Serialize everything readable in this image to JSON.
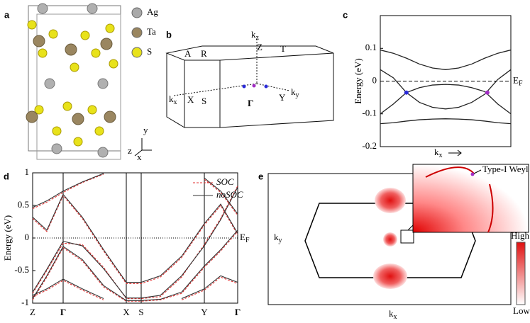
{
  "panels": {
    "a": {
      "label": "a",
      "legend": [
        {
          "name": "Ag",
          "color": "#a9a9a9"
        },
        {
          "name": "Ta",
          "color": "#9a8660"
        },
        {
          "name": "S",
          "color": "#e8e21a"
        }
      ],
      "axes": [
        "y",
        "z",
        "x"
      ]
    },
    "b": {
      "label": "b",
      "points": [
        "A",
        "R",
        "Z",
        "T",
        "Γ",
        "X",
        "S",
        "Y"
      ],
      "axes": [
        {
          "text": "k",
          "sub": "z"
        },
        {
          "text": "k",
          "sub": "x"
        },
        {
          "text": "k",
          "sub": "y"
        }
      ]
    },
    "e": {
      "label": "e",
      "xlabel": {
        "text": "k",
        "sub": "x"
      },
      "ylabel": {
        "text": "k",
        "sub": "y"
      },
      "inset_label": "Type-I Weyl",
      "colorbar": [
        "High",
        "Low"
      ]
    }
  },
  "chart_data": [
    {
      "type": "line",
      "label": "c",
      "ylabel": "Energy (eV)",
      "xlabel": {
        "text": "k",
        "sub": "x"
      },
      "fermi_label": {
        "text": "E",
        "sub": "F"
      },
      "ylim": [
        -0.2,
        0.2
      ],
      "yticks": [
        -0.2,
        -0.1,
        0,
        0.1
      ],
      "xlim": [
        0,
        1
      ],
      "x": [
        0,
        0.1,
        0.2,
        0.3,
        0.4,
        0.5,
        0.6,
        0.7,
        0.8,
        0.9,
        1
      ],
      "series": [
        {
          "color": "#222",
          "values": [
            0.095,
            0.085,
            0.07,
            0.052,
            0.04,
            0.035,
            0.04,
            0.052,
            0.07,
            0.085,
            0.095
          ]
        },
        {
          "color": "#222",
          "values": [
            0.035,
            0.01,
            -0.035,
            -0.065,
            -0.08,
            -0.085,
            -0.08,
            -0.065,
            -0.04,
            0.005,
            0.035
          ]
        },
        {
          "color": "#222",
          "values": [
            -0.1,
            -0.07,
            -0.035,
            -0.02,
            -0.012,
            -0.01,
            -0.012,
            -0.02,
            -0.032,
            -0.07,
            -0.1
          ]
        },
        {
          "color": "#222",
          "values": [
            -0.13,
            -0.127,
            -0.122,
            -0.118,
            -0.116,
            -0.115,
            -0.116,
            -0.118,
            -0.122,
            -0.127,
            -0.13
          ]
        }
      ],
      "points": [
        {
          "x": 0.2,
          "y": -0.035,
          "color": "#2a2ad8"
        },
        {
          "x": 0.82,
          "y": -0.035,
          "color": "#a22cc4"
        }
      ]
    },
    {
      "type": "bands",
      "label": "d",
      "ylabel": "Energy (eV)",
      "fermi_label": {
        "text": "E",
        "sub": "F"
      },
      "ylim": [
        -1,
        1
      ],
      "yticks": [
        -1,
        -0.5,
        0,
        0.5,
        1
      ],
      "xlim": [
        0,
        289
      ],
      "xticks": [
        {
          "value": 0,
          "label": "Z"
        },
        {
          "value": 43,
          "label": "Γ"
        },
        {
          "value": 132,
          "label": "X"
        },
        {
          "value": 153,
          "label": "S"
        },
        {
          "value": 242,
          "label": "Y"
        },
        {
          "value": 289,
          "label": "Γ"
        }
      ],
      "x": [
        0,
        20,
        43,
        70,
        100,
        132,
        153,
        180,
        210,
        242,
        265,
        289
      ],
      "series": [
        {
          "name": "SOC",
          "color": "#e03030",
          "dashed": true,
          "bands": [
            [
              -0.85,
              -0.5,
              -0.08,
              -0.1,
              -0.45,
              -0.93,
              -0.93,
              -0.9,
              -0.6,
              -0.1,
              0.3,
              0.8
            ],
            [
              0.45,
              0.55,
              0.7,
              0.85,
              0.98,
              null,
              null,
              null,
              null,
              0.9,
              0.7,
              0.35
            ],
            [
              -0.95,
              -0.6,
              -0.15,
              -0.35,
              -0.75,
              -0.97,
              -0.97,
              -0.95,
              -0.85,
              -0.45,
              -0.2,
              0.1
            ],
            [
              -0.9,
              -0.8,
              -0.65,
              -0.8,
              -0.95,
              null,
              null,
              null,
              -0.95,
              -0.8,
              -0.6,
              -0.7
            ],
            [
              0.3,
              0.1,
              0.65,
              0.3,
              -0.2,
              -0.7,
              -0.7,
              -0.6,
              -0.3,
              0.2,
              0.5,
              0.05
            ]
          ]
        },
        {
          "name": "noSOC",
          "color": "#333",
          "dashed": false,
          "bands": [
            [
              -0.83,
              -0.48,
              -0.05,
              -0.12,
              -0.47,
              -0.92,
              -0.92,
              -0.88,
              -0.58,
              -0.12,
              0.28,
              0.78
            ],
            [
              0.47,
              0.57,
              0.72,
              0.86,
              0.99,
              null,
              null,
              null,
              null,
              0.92,
              0.72,
              0.37
            ],
            [
              -0.93,
              -0.58,
              -0.13,
              -0.33,
              -0.73,
              -0.96,
              -0.96,
              -0.94,
              -0.83,
              -0.43,
              -0.18,
              0.12
            ],
            [
              -0.88,
              -0.78,
              -0.63,
              -0.78,
              -0.93,
              null,
              null,
              null,
              -0.93,
              -0.78,
              -0.58,
              -0.68
            ],
            [
              0.32,
              0.12,
              0.67,
              0.32,
              -0.18,
              -0.68,
              -0.68,
              -0.58,
              -0.28,
              0.22,
              0.52,
              0.07
            ]
          ]
        }
      ]
    }
  ]
}
